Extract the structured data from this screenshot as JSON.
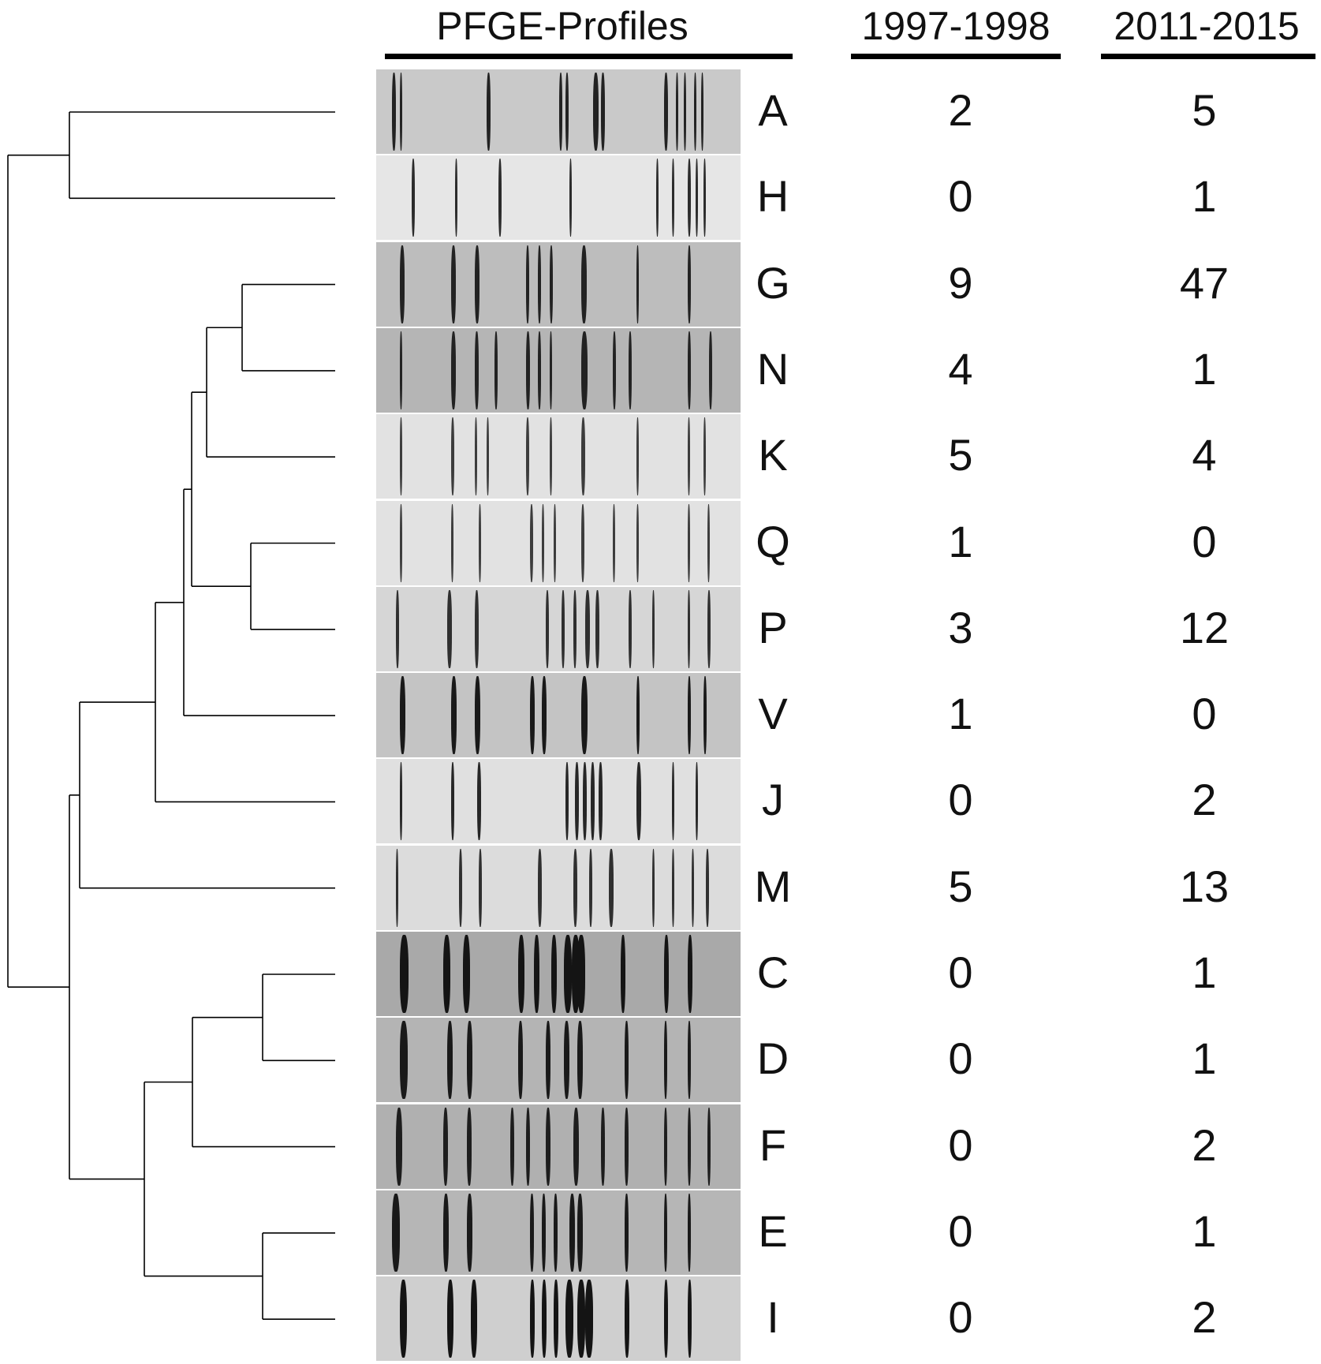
{
  "headers": {
    "profiles": "PFGE-Profiles",
    "period1": "1997-1998",
    "period2": "2011-2015"
  },
  "rows": [
    {
      "label": "A",
      "p1": "2",
      "p2": "5"
    },
    {
      "label": "H",
      "p1": "0",
      "p2": "1"
    },
    {
      "label": "G",
      "p1": "9",
      "p2": "47"
    },
    {
      "label": "N",
      "p1": "4",
      "p2": "1"
    },
    {
      "label": "K",
      "p1": "5",
      "p2": "4"
    },
    {
      "label": "Q",
      "p1": "1",
      "p2": "0"
    },
    {
      "label": "P",
      "p1": "3",
      "p2": "12"
    },
    {
      "label": "V",
      "p1": "1",
      "p2": "0"
    },
    {
      "label": "J",
      "p1": "0",
      "p2": "2"
    },
    {
      "label": "M",
      "p1": "5",
      "p2": "13"
    },
    {
      "label": "C",
      "p1": "0",
      "p2": "1"
    },
    {
      "label": "D",
      "p1": "0",
      "p2": "1"
    },
    {
      "label": "F",
      "p1": "0",
      "p2": "2"
    },
    {
      "label": "E",
      "p1": "0",
      "p2": "1"
    },
    {
      "label": "I",
      "p1": "0",
      "p2": "2"
    }
  ],
  "colors": {
    "line": "#000000",
    "text": "#111111"
  }
}
